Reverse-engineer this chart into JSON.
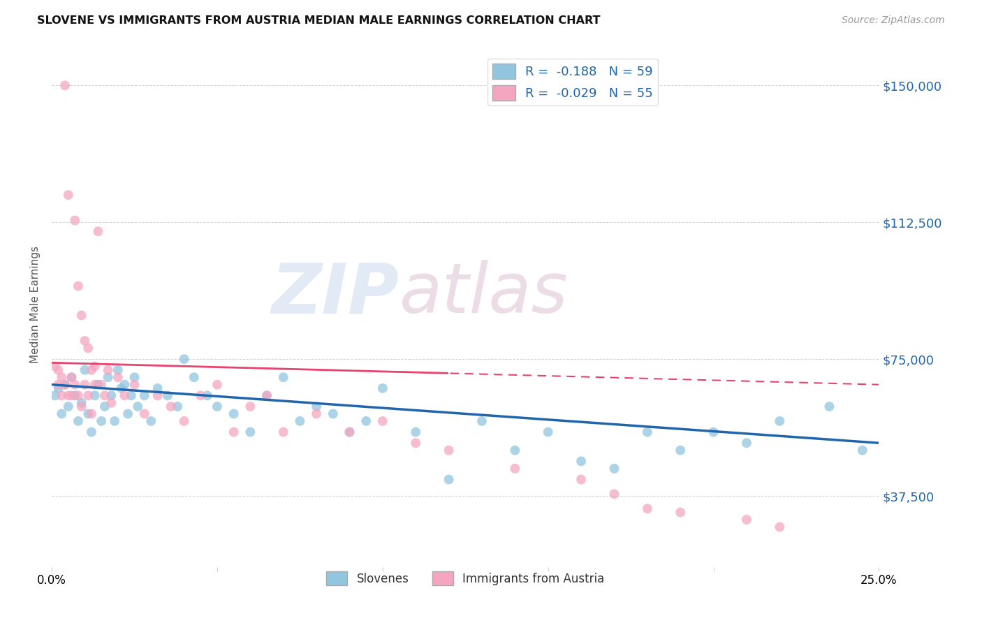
{
  "title": "SLOVENE VS IMMIGRANTS FROM AUSTRIA MEDIAN MALE EARNINGS CORRELATION CHART",
  "source": "Source: ZipAtlas.com",
  "ylabel": "Median Male Earnings",
  "xlim": [
    0.0,
    0.25
  ],
  "ylim": [
    18000,
    162000
  ],
  "yticks": [
    37500,
    75000,
    112500,
    150000
  ],
  "ytick_labels": [
    "$37,500",
    "$75,000",
    "$112,500",
    "$150,000"
  ],
  "xticks": [
    0.0,
    0.05,
    0.1,
    0.15,
    0.2,
    0.25
  ],
  "xtick_labels": [
    "0.0%",
    "",
    "",
    "",
    "",
    "25.0%"
  ],
  "blue_color": "#92c5de",
  "pink_color": "#f4a6c0",
  "blue_line_color": "#2166ac",
  "pink_line_color": "#e8436e",
  "right_label_color": "#2166ac",
  "watermark_color_zip": "#b8cfe8",
  "watermark_color_atlas": "#c8a0b8",
  "blue_r": -0.188,
  "blue_n": 59,
  "pink_r": -0.029,
  "pink_n": 55,
  "blue_scatter_x": [
    0.001,
    0.002,
    0.003,
    0.004,
    0.005,
    0.006,
    0.007,
    0.008,
    0.009,
    0.01,
    0.011,
    0.012,
    0.013,
    0.014,
    0.015,
    0.016,
    0.017,
    0.018,
    0.019,
    0.02,
    0.021,
    0.022,
    0.023,
    0.024,
    0.025,
    0.026,
    0.028,
    0.03,
    0.032,
    0.035,
    0.038,
    0.04,
    0.043,
    0.047,
    0.05,
    0.055,
    0.06,
    0.065,
    0.07,
    0.075,
    0.08,
    0.085,
    0.09,
    0.095,
    0.1,
    0.11,
    0.12,
    0.13,
    0.14,
    0.15,
    0.16,
    0.17,
    0.18,
    0.19,
    0.2,
    0.21,
    0.22,
    0.235,
    0.245
  ],
  "blue_scatter_y": [
    65000,
    67000,
    60000,
    68000,
    62000,
    70000,
    65000,
    58000,
    63000,
    72000,
    60000,
    55000,
    65000,
    68000,
    58000,
    62000,
    70000,
    65000,
    58000,
    72000,
    67000,
    68000,
    60000,
    65000,
    70000,
    62000,
    65000,
    58000,
    67000,
    65000,
    62000,
    75000,
    70000,
    65000,
    62000,
    60000,
    55000,
    65000,
    70000,
    58000,
    62000,
    60000,
    55000,
    58000,
    67000,
    55000,
    42000,
    58000,
    50000,
    55000,
    47000,
    45000,
    55000,
    50000,
    55000,
    52000,
    58000,
    62000,
    50000
  ],
  "pink_scatter_x": [
    0.001,
    0.002,
    0.002,
    0.003,
    0.003,
    0.004,
    0.004,
    0.005,
    0.005,
    0.006,
    0.006,
    0.007,
    0.007,
    0.008,
    0.008,
    0.009,
    0.009,
    0.01,
    0.01,
    0.011,
    0.011,
    0.012,
    0.012,
    0.013,
    0.013,
    0.014,
    0.015,
    0.016,
    0.017,
    0.018,
    0.02,
    0.022,
    0.025,
    0.028,
    0.032,
    0.036,
    0.04,
    0.045,
    0.05,
    0.055,
    0.06,
    0.065,
    0.07,
    0.08,
    0.09,
    0.1,
    0.11,
    0.12,
    0.14,
    0.16,
    0.17,
    0.18,
    0.19,
    0.21,
    0.22
  ],
  "pink_scatter_y": [
    73000,
    68000,
    72000,
    65000,
    70000,
    150000,
    68000,
    65000,
    120000,
    70000,
    65000,
    113000,
    68000,
    95000,
    65000,
    87000,
    62000,
    80000,
    68000,
    78000,
    65000,
    72000,
    60000,
    68000,
    73000,
    110000,
    68000,
    65000,
    72000,
    63000,
    70000,
    65000,
    68000,
    60000,
    65000,
    62000,
    58000,
    65000,
    68000,
    55000,
    62000,
    65000,
    55000,
    60000,
    55000,
    58000,
    52000,
    50000,
    45000,
    42000,
    38000,
    34000,
    33000,
    31000,
    29000
  ]
}
